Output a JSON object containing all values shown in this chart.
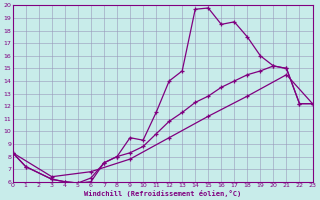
{
  "xlabel": "Windchill (Refroidissement éolien,°C)",
  "bg_color": "#c8ecea",
  "line_color": "#800080",
  "grid_color": "#9999bb",
  "xmin": 0,
  "xmax": 23,
  "ymin": 6,
  "ymax": 20,
  "line1_x": [
    0,
    1,
    3,
    4,
    5,
    6,
    7,
    8,
    9,
    10,
    11,
    12,
    13,
    14,
    15,
    16,
    17,
    18,
    19,
    20,
    21,
    22,
    23
  ],
  "line1_y": [
    8.3,
    7.2,
    6.2,
    6.0,
    5.9,
    6.0,
    7.5,
    8.0,
    9.5,
    9.3,
    11.5,
    14.0,
    14.8,
    19.7,
    19.8,
    18.5,
    18.7,
    17.5,
    16.0,
    15.2,
    15.0,
    12.2,
    12.2
  ],
  "line2_x": [
    0,
    1,
    3,
    4,
    5,
    6,
    7,
    8,
    9,
    10,
    11,
    12,
    13,
    14,
    15,
    16,
    17,
    18,
    19,
    20,
    21,
    22,
    23
  ],
  "line2_y": [
    8.3,
    7.2,
    6.2,
    6.0,
    5.9,
    6.3,
    7.5,
    8.0,
    8.3,
    8.8,
    9.8,
    10.8,
    11.5,
    12.3,
    12.8,
    13.5,
    14.0,
    14.5,
    14.8,
    15.2,
    15.0,
    12.2,
    12.2
  ],
  "line3_x": [
    0,
    3,
    6,
    9,
    12,
    15,
    18,
    21,
    23
  ],
  "line3_y": [
    8.3,
    6.4,
    6.8,
    7.8,
    9.5,
    11.2,
    12.8,
    14.5,
    12.2
  ]
}
